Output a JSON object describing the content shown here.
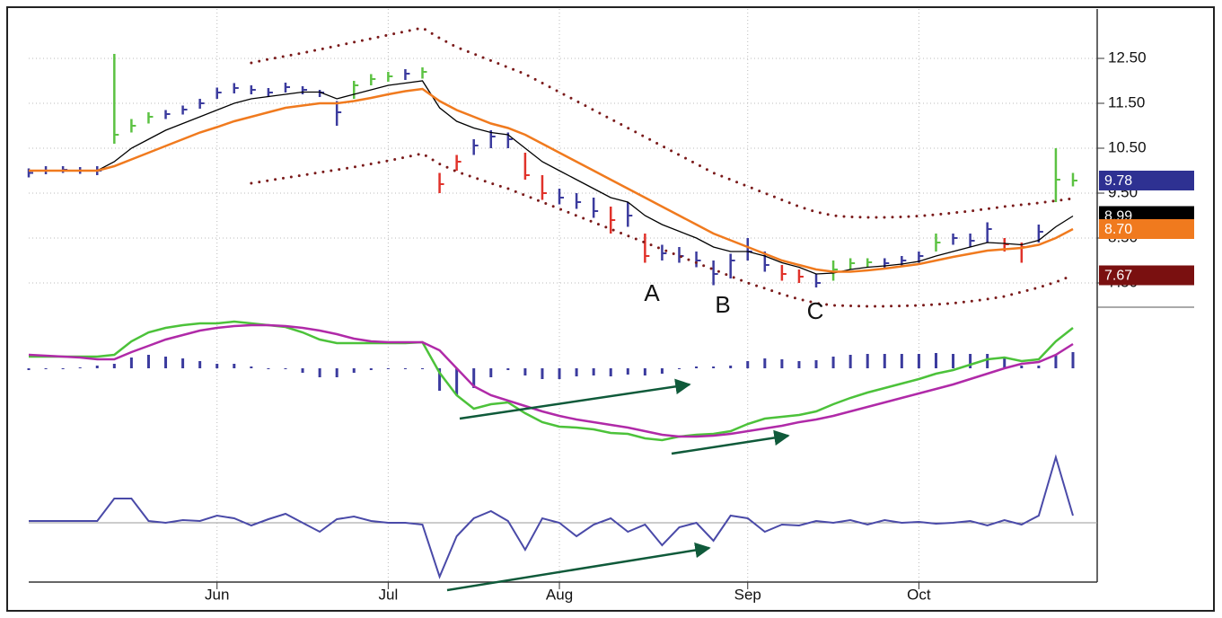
{
  "chart_data": [
    {
      "type": "ohlc",
      "categories": [
        null,
        null,
        null,
        null,
        null,
        null,
        null,
        null,
        null,
        null,
        null,
        "Jun",
        null,
        null,
        null,
        null,
        null,
        null,
        null,
        null,
        null,
        "Jul",
        null,
        null,
        null,
        null,
        null,
        null,
        null,
        null,
        null,
        "Aug",
        null,
        null,
        null,
        null,
        null,
        null,
        null,
        null,
        null,
        null,
        "Sep",
        null,
        null,
        null,
        null,
        null,
        null,
        null,
        null,
        null,
        "Oct",
        null,
        null,
        null,
        null,
        null,
        null,
        null,
        null,
        null
      ],
      "close": [
        9.95,
        10.0,
        10.02,
        10.0,
        10.0,
        10.8,
        11.0,
        11.2,
        11.26,
        11.36,
        11.5,
        11.74,
        11.84,
        11.8,
        11.74,
        11.86,
        11.8,
        11.74,
        11.3,
        11.9,
        12.04,
        12.1,
        12.16,
        12.2,
        9.7,
        10.2,
        10.56,
        10.76,
        10.7,
        9.9,
        9.5,
        9.4,
        9.3,
        9.1,
        8.9,
        9.0,
        8.1,
        8.16,
        8.1,
        8.0,
        7.7,
        8.0,
        8.2,
        7.9,
        7.7,
        7.64,
        7.5,
        7.8,
        7.94,
        7.96,
        7.94,
        8.0,
        8.1,
        8.4,
        8.5,
        8.44,
        8.7,
        8.36,
        8.3,
        8.64,
        9.8,
        9.78
      ],
      "high": [
        10.05,
        10.1,
        10.1,
        10.08,
        10.1,
        12.6,
        11.15,
        11.3,
        11.35,
        11.45,
        11.6,
        11.85,
        11.95,
        11.9,
        11.84,
        11.96,
        11.88,
        11.8,
        11.55,
        12.0,
        12.15,
        12.2,
        12.26,
        12.3,
        9.95,
        10.35,
        10.7,
        10.9,
        10.85,
        10.4,
        9.9,
        9.6,
        9.5,
        9.4,
        9.2,
        9.3,
        8.6,
        8.35,
        8.3,
        8.2,
        8.0,
        8.15,
        8.5,
        8.2,
        7.9,
        7.8,
        7.7,
        8.0,
        8.05,
        8.05,
        8.05,
        8.1,
        8.2,
        8.6,
        8.6,
        8.6,
        8.85,
        8.5,
        8.4,
        8.8,
        10.5,
        9.95
      ],
      "low": [
        9.85,
        9.92,
        9.95,
        9.93,
        9.9,
        10.6,
        10.85,
        11.05,
        11.15,
        11.25,
        11.38,
        11.6,
        11.72,
        11.7,
        11.64,
        11.74,
        11.7,
        11.64,
        11.0,
        11.6,
        11.9,
        11.98,
        12.02,
        12.05,
        9.5,
        10.0,
        10.35,
        10.5,
        10.5,
        9.8,
        9.35,
        9.25,
        9.15,
        8.95,
        8.6,
        8.75,
        7.95,
        8.0,
        7.95,
        7.85,
        7.45,
        7.6,
        8.0,
        7.75,
        7.55,
        7.5,
        7.4,
        7.55,
        7.8,
        7.85,
        7.82,
        7.88,
        7.95,
        8.2,
        8.35,
        8.3,
        8.4,
        8.2,
        7.95,
        8.4,
        9.3,
        9.65
      ],
      "impulse_colors": {
        "up": "#5cc243",
        "down": "#e0322a",
        "neutral": "#3b3b9e"
      },
      "series": [
        {
          "color": "#000000",
          "style": "solid",
          "values": [
            10.0,
            10.0,
            10.0,
            10.0,
            10.0,
            10.2,
            10.5,
            10.7,
            10.9,
            11.05,
            11.2,
            11.35,
            11.5,
            11.6,
            11.65,
            11.7,
            11.75,
            11.75,
            11.6,
            11.7,
            11.8,
            11.9,
            11.95,
            12.0,
            11.4,
            11.1,
            10.95,
            10.85,
            10.8,
            10.5,
            10.2,
            10.0,
            9.8,
            9.6,
            9.4,
            9.3,
            9.0,
            8.8,
            8.65,
            8.5,
            8.3,
            8.2,
            8.2,
            8.1,
            7.95,
            7.85,
            7.7,
            7.72,
            7.8,
            7.85,
            7.88,
            7.92,
            7.98,
            8.1,
            8.2,
            8.3,
            8.4,
            8.38,
            8.35,
            8.45,
            8.75,
            8.99
          ]
        },
        {
          "color": "#f07a1e",
          "style": "solid",
          "values": [
            10.0,
            10.0,
            10.0,
            10.0,
            10.0,
            10.1,
            10.25,
            10.4,
            10.55,
            10.7,
            10.85,
            10.97,
            11.1,
            11.2,
            11.3,
            11.4,
            11.45,
            11.5,
            11.5,
            11.55,
            11.62,
            11.7,
            11.77,
            11.82,
            11.55,
            11.35,
            11.2,
            11.05,
            10.95,
            10.8,
            10.6,
            10.4,
            10.2,
            10.0,
            9.8,
            9.6,
            9.4,
            9.2,
            9.0,
            8.8,
            8.6,
            8.45,
            8.3,
            8.15,
            8.0,
            7.9,
            7.8,
            7.75,
            7.75,
            7.78,
            7.82,
            7.87,
            7.92,
            8.0,
            8.08,
            8.15,
            8.22,
            8.25,
            8.28,
            8.35,
            8.5,
            8.7
          ]
        },
        {
          "color": "#7a1a1a",
          "style": "dotted",
          "values": [
            null,
            null,
            null,
            null,
            null,
            null,
            null,
            null,
            null,
            null,
            null,
            null,
            null,
            12.4,
            12.48,
            12.55,
            12.62,
            12.7,
            12.78,
            12.86,
            12.94,
            13.02,
            13.1,
            13.18,
            12.95,
            12.75,
            12.6,
            12.45,
            12.3,
            12.15,
            11.95,
            11.75,
            11.55,
            11.35,
            11.15,
            10.95,
            10.75,
            10.55,
            10.35,
            10.15,
            9.95,
            9.8,
            9.65,
            9.5,
            9.35,
            9.2,
            9.08,
            9.0,
            8.97,
            8.96,
            8.96,
            8.97,
            8.99,
            9.02,
            9.06,
            9.1,
            9.15,
            9.2,
            9.24,
            9.28,
            9.33,
            9.38
          ]
        },
        {
          "color": "#7a1a1a",
          "style": "dotted",
          "values": [
            null,
            null,
            null,
            null,
            null,
            null,
            null,
            null,
            null,
            null,
            null,
            null,
            null,
            9.72,
            9.78,
            9.84,
            9.9,
            9.96,
            10.02,
            10.08,
            10.15,
            10.22,
            10.3,
            10.38,
            10.15,
            9.98,
            9.85,
            9.72,
            9.6,
            9.45,
            9.3,
            9.15,
            9.0,
            8.85,
            8.7,
            8.55,
            8.4,
            8.25,
            8.1,
            7.95,
            7.8,
            7.65,
            7.5,
            7.38,
            7.25,
            7.14,
            7.05,
            7.0,
            6.99,
            6.98,
            6.98,
            6.99,
            7.0,
            7.02,
            7.05,
            7.09,
            7.14,
            7.2,
            7.3,
            7.4,
            7.52,
            7.67
          ]
        }
      ],
      "ylim": [
        6.96,
        13.6
      ],
      "yticks": [
        {
          "value": 12.5,
          "label": "12.50"
        },
        {
          "value": 11.5,
          "label": "11.50"
        },
        {
          "value": 10.5,
          "label": "10.50"
        },
        {
          "value": 9.5,
          "label": "9.50"
        },
        {
          "value": 8.5,
          "label": "8.50"
        },
        {
          "value": 7.5,
          "label": "7.50"
        }
      ],
      "flags": [
        {
          "value": 9.78,
          "color": "#2e3192",
          "text_color": "#ffffff"
        },
        {
          "value": 8.99,
          "color": "#000000",
          "text_color": "#ffffff"
        },
        {
          "value": 8.7,
          "label": "8.70",
          "color": "#f07a1e",
          "text_color": "#ffffff"
        },
        {
          "value": 7.67,
          "color": "#7a1010",
          "text_color": "#ffffff"
        }
      ],
      "annotations": [
        "A",
        "B",
        "C"
      ],
      "grid": true
    },
    {
      "type": "macd",
      "series": [
        {
          "color": "#4cc23a",
          "values": [
            0.13,
            0.13,
            0.13,
            0.13,
            0.13,
            0.15,
            0.3,
            0.4,
            0.45,
            0.48,
            0.5,
            0.5,
            0.52,
            0.5,
            0.48,
            0.46,
            0.4,
            0.32,
            0.28,
            0.28,
            0.28,
            0.28,
            0.28,
            0.29,
            -0.05,
            -0.3,
            -0.45,
            -0.4,
            -0.38,
            -0.5,
            -0.6,
            -0.65,
            -0.66,
            -0.68,
            -0.72,
            -0.73,
            -0.78,
            -0.8,
            -0.76,
            -0.74,
            -0.73,
            -0.7,
            -0.62,
            -0.56,
            -0.54,
            -0.52,
            -0.48,
            -0.4,
            -0.33,
            -0.27,
            -0.22,
            -0.17,
            -0.12,
            -0.06,
            -0.02,
            0.04,
            0.1,
            0.12,
            0.08,
            0.1,
            0.3,
            0.45
          ]
        },
        {
          "color": "#b02aa8",
          "values": [
            0.15,
            0.14,
            0.13,
            0.12,
            0.1,
            0.1,
            0.18,
            0.25,
            0.32,
            0.37,
            0.42,
            0.45,
            0.47,
            0.48,
            0.48,
            0.47,
            0.45,
            0.42,
            0.38,
            0.33,
            0.3,
            0.29,
            0.29,
            0.29,
            0.2,
            0.0,
            -0.2,
            -0.3,
            -0.36,
            -0.42,
            -0.48,
            -0.53,
            -0.57,
            -0.6,
            -0.63,
            -0.66,
            -0.7,
            -0.74,
            -0.76,
            -0.76,
            -0.75,
            -0.73,
            -0.7,
            -0.67,
            -0.64,
            -0.6,
            -0.57,
            -0.53,
            -0.48,
            -0.43,
            -0.38,
            -0.33,
            -0.28,
            -0.23,
            -0.18,
            -0.12,
            -0.06,
            0.0,
            0.05,
            0.07,
            0.15,
            0.27
          ]
        }
      ],
      "histogram": {
        "color": "#3b3b9e",
        "values": [
          -0.02,
          -0.01,
          0,
          0.01,
          0.03,
          0.05,
          0.12,
          0.15,
          0.13,
          0.11,
          0.08,
          0.05,
          0.05,
          0.02,
          0,
          -0.01,
          -0.05,
          -0.1,
          -0.1,
          -0.05,
          -0.02,
          -0.01,
          -0.01,
          0,
          -0.25,
          -0.3,
          -0.22,
          -0.1,
          -0.02,
          -0.08,
          -0.12,
          -0.12,
          -0.09,
          -0.08,
          -0.09,
          -0.07,
          -0.08,
          -0.06,
          0,
          0.02,
          0.02,
          0.03,
          0.08,
          0.11,
          0.1,
          0.08,
          0.09,
          0.13,
          0.15,
          0.16,
          0.16,
          0.16,
          0.16,
          0.17,
          0.16,
          0.16,
          0.16,
          0.12,
          0.03,
          0.03,
          0.15,
          0.18
        ]
      },
      "ylim": [
        -0.9,
        0.65
      ]
    },
    {
      "type": "line",
      "series": [
        {
          "color": "#4a4aa8",
          "values": [
            0.02,
            0.02,
            0.02,
            0.02,
            0.02,
            0.27,
            0.27,
            0.02,
            0.0,
            0.03,
            0.02,
            0.08,
            0.05,
            -0.03,
            0.04,
            0.1,
            0.0,
            -0.1,
            0.04,
            0.07,
            0.02,
            0.0,
            0.0,
            -0.02,
            -0.6,
            -0.15,
            0.05,
            0.13,
            0.02,
            -0.3,
            0.05,
            0.0,
            -0.15,
            -0.02,
            0.05,
            -0.1,
            -0.02,
            -0.25,
            -0.05,
            0.0,
            -0.2,
            0.08,
            0.05,
            -0.1,
            -0.02,
            -0.03,
            0.02,
            0.0,
            0.03,
            -0.02,
            0.03,
            0.0,
            0.01,
            -0.01,
            0.0,
            0.02,
            -0.03,
            0.03,
            -0.02,
            0.08,
            0.73,
            0.08
          ]
        }
      ],
      "ylim": [
        -0.63,
        0.77
      ]
    }
  ]
}
